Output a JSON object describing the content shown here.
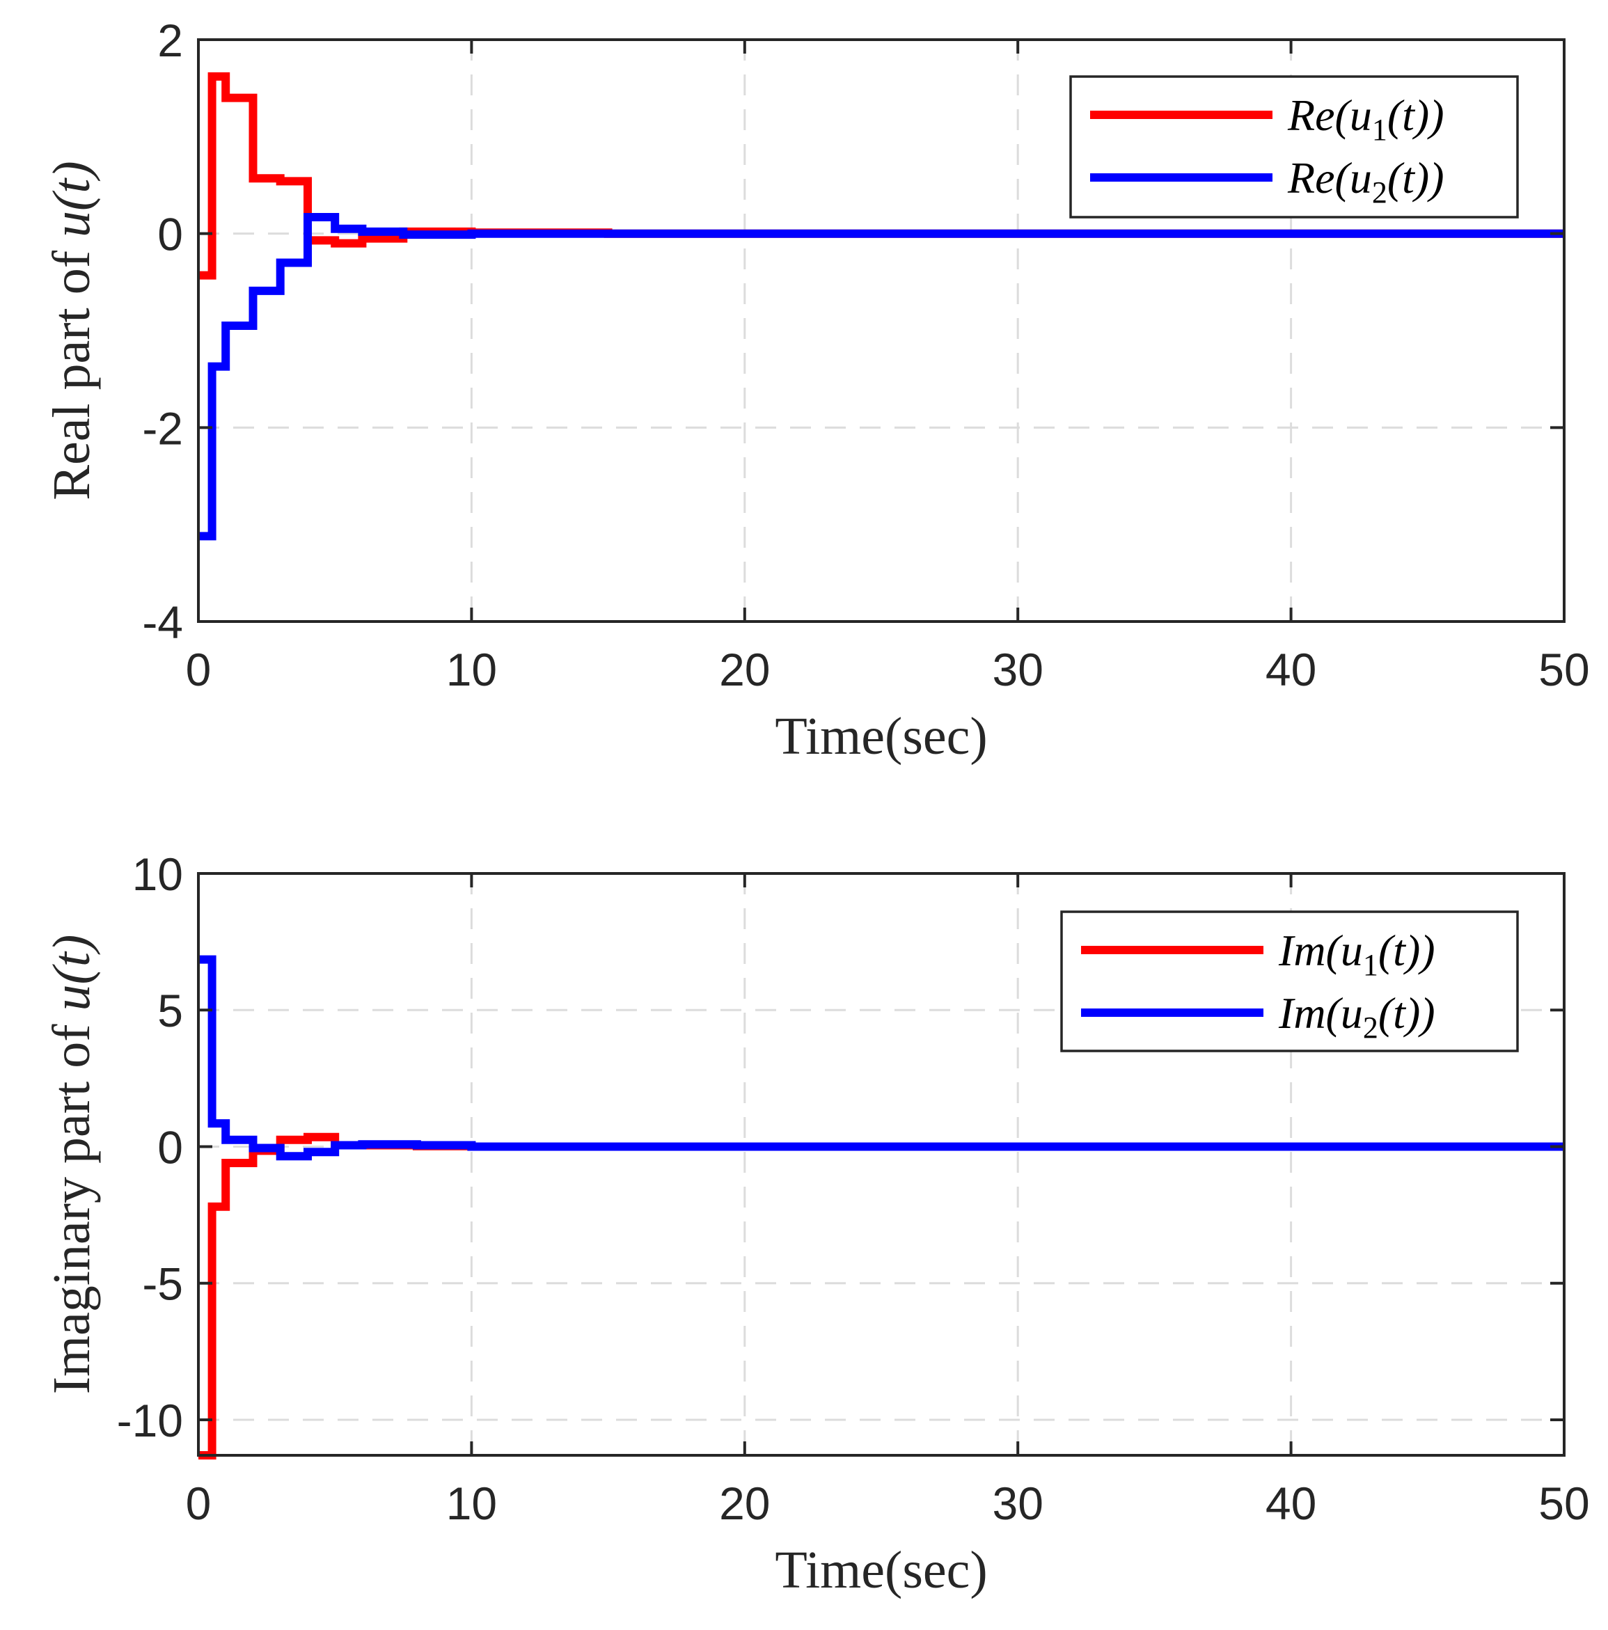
{
  "chart_data": [
    {
      "type": "line",
      "step": true,
      "title": "",
      "xlabel": "Time(sec)",
      "ylabel_prefix": "Real part of ",
      "ylabel_math": "u(t)",
      "xlim": [
        0,
        50
      ],
      "ylim": [
        -4,
        2
      ],
      "xticks": [
        0,
        10,
        20,
        30,
        40,
        50
      ],
      "xtick_labels": [
        "0",
        "10",
        "20",
        "30",
        "40",
        "50"
      ],
      "yticks": [
        -4,
        -2,
        0,
        2
      ],
      "ytick_labels": [
        "-4",
        "-2",
        "0",
        "2"
      ],
      "grid": true,
      "legend_position": "top-right",
      "series": [
        {
          "name": "Re(u1(t))",
          "legend_base": "Re(u",
          "legend_sub": "1",
          "legend_tail": "(t))",
          "color": "#ff0000",
          "x": [
            0,
            0.5,
            1,
            2,
            3,
            4,
            5,
            6,
            7.5,
            10,
            15,
            50
          ],
          "y": [
            -0.43,
            1.62,
            1.4,
            0.57,
            0.54,
            -0.07,
            -0.1,
            -0.05,
            0.02,
            0.01,
            0.0,
            0.0
          ]
        },
        {
          "name": "Re(u2(t))",
          "legend_base": "Re(u",
          "legend_sub": "2",
          "legend_tail": "(t))",
          "color": "#0000ff",
          "x": [
            0,
            0.5,
            1,
            2,
            3,
            4,
            5,
            6,
            7.5,
            10,
            15,
            50
          ],
          "y": [
            -3.12,
            -1.37,
            -0.95,
            -0.59,
            -0.3,
            0.17,
            0.05,
            0.02,
            -0.01,
            0.0,
            0.0,
            0.0
          ]
        }
      ]
    },
    {
      "type": "line",
      "step": true,
      "title": "",
      "xlabel": "Time(sec)",
      "ylabel_prefix": "Imaginary part of ",
      "ylabel_math": "u(t)",
      "xlim": [
        0,
        50
      ],
      "ylim": [
        -11.3,
        10
      ],
      "xticks": [
        0,
        10,
        20,
        30,
        40,
        50
      ],
      "xtick_labels": [
        "0",
        "10",
        "20",
        "30",
        "40",
        "50"
      ],
      "yticks": [
        -10,
        -5,
        0,
        5,
        10
      ],
      "ytick_labels": [
        "-10",
        "-5",
        "0",
        "5",
        "10"
      ],
      "grid": true,
      "legend_position": "top-right",
      "series": [
        {
          "name": "Im(u1(t))",
          "legend_base": "Im(u",
          "legend_sub": "1",
          "legend_tail": "(t))",
          "color": "#ff0000",
          "x": [
            0,
            0.5,
            1,
            2,
            3,
            4,
            5,
            6,
            8,
            10,
            15,
            50
          ],
          "y": [
            -11.3,
            -2.2,
            -0.6,
            -0.15,
            0.25,
            0.35,
            0.05,
            0.05,
            0.02,
            0.0,
            0.0,
            0.0
          ]
        },
        {
          "name": "Im(u2(t))",
          "legend_base": "Im(u",
          "legend_sub": "2",
          "legend_tail": "(t))",
          "color": "#0000ff",
          "x": [
            0,
            0.5,
            1,
            2,
            3,
            4,
            5,
            6,
            8,
            10,
            15,
            50
          ],
          "y": [
            6.85,
            0.85,
            0.25,
            -0.05,
            -0.35,
            -0.2,
            0.05,
            0.08,
            0.05,
            0.0,
            0.0,
            0.0
          ]
        }
      ]
    }
  ]
}
